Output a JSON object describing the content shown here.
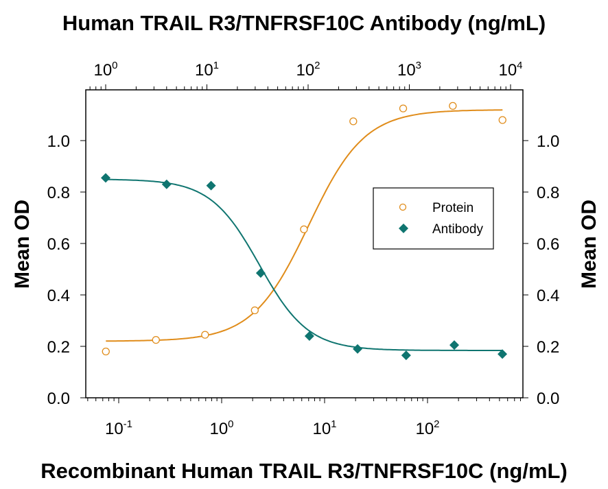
{
  "chart_data": {
    "type": "scatter",
    "title": "Human TRAIL R3/TNFRSF10C Antibody (ng/mL)",
    "xlabel": "Recombinant Human TRAIL R3/TNFRSF10C (ng/mL)",
    "x2label": "Human TRAIL R3/TNFRSF10C Antibody (ng/mL)",
    "ylabel": "Mean OD",
    "y2label": "Mean OD",
    "xscale": "log",
    "x2scale": "log",
    "xlim": [
      0.05,
      800
    ],
    "x2lim": [
      0.79,
      12000
    ],
    "ylim": [
      0,
      1.2
    ],
    "x_ticks": [
      {
        "base": "10",
        "exp": "-1",
        "value": 0.1
      },
      {
        "base": "10",
        "exp": "0",
        "value": 1
      },
      {
        "base": "10",
        "exp": "1",
        "value": 10
      },
      {
        "base": "10",
        "exp": "2",
        "value": 100
      }
    ],
    "x2_ticks": [
      {
        "base": "10",
        "exp": "0",
        "value": 1
      },
      {
        "base": "10",
        "exp": "1",
        "value": 10
      },
      {
        "base": "10",
        "exp": "2",
        "value": 100
      },
      {
        "base": "10",
        "exp": "3",
        "value": 1000
      },
      {
        "base": "10",
        "exp": "4",
        "value": 10000
      }
    ],
    "y_ticks": [
      "0.0",
      "0.2",
      "0.4",
      "0.6",
      "0.8",
      "1.0"
    ],
    "grid": false,
    "legend_position": "center-right",
    "series": [
      {
        "name": "Protein",
        "axis": "bottom",
        "marker": "open-circle",
        "color": "#e08c1a",
        "x": [
          0.075,
          0.23,
          0.69,
          2.1,
          6.3,
          19,
          58,
          176,
          535
        ],
        "values": [
          0.18,
          0.225,
          0.245,
          0.34,
          0.655,
          1.075,
          1.125,
          1.135,
          1.08
        ],
        "fit": {
          "bottom": 0.22,
          "top": 1.12,
          "ec50": 7.0,
          "hill": 1.6
        }
      },
      {
        "name": "Antibody",
        "axis": "top",
        "marker": "filled-diamond",
        "color": "#0f7570",
        "x": [
          1.0,
          4.0,
          11,
          34,
          103,
          308,
          930,
          2780,
          8300
        ],
        "values": [
          0.855,
          0.83,
          0.825,
          0.485,
          0.24,
          0.19,
          0.165,
          0.205,
          0.17
        ],
        "fit": {
          "bottom": 0.184,
          "top": 0.85,
          "ec50": 33,
          "hill": 1.8
        }
      }
    ]
  }
}
